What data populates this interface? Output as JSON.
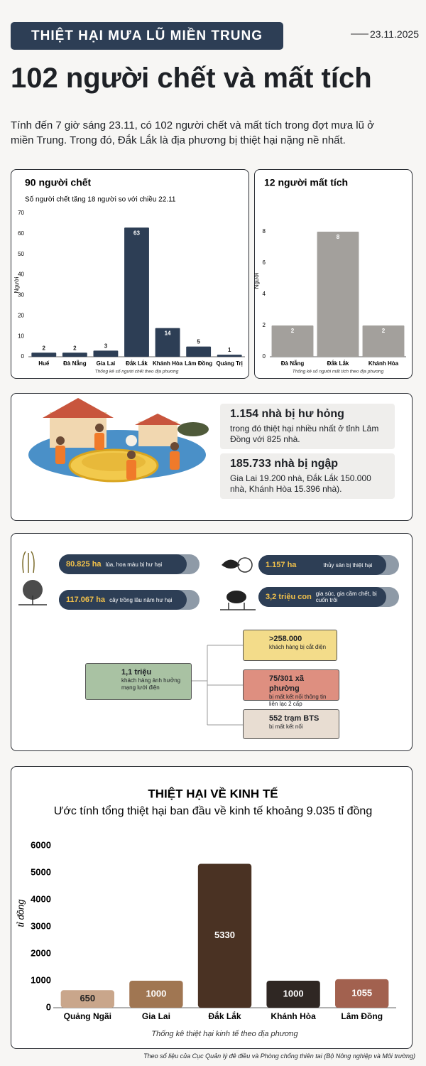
{
  "header": {
    "kicker": "THIỆT HẠI MƯA LŨ MIỀN TRUNG",
    "date": "23.11.2025",
    "headline": "102 người chết và mất tích",
    "intro": "Tính đến 7 giờ sáng 23.11, có 102 người chết và mất tích trong đợt mưa lũ ở miền Trung. Trong đó, Đắk Lắk là địa phương bị thiệt hại nặng nề nhất."
  },
  "chart_data": [
    {
      "type": "bar",
      "title": "90 người chết",
      "subtitle": "Số người chết tăng 18 người so với chiều 22.11",
      "y_label": "Người",
      "x_label": "Thống kê số người chết theo địa phương",
      "categories": [
        "Huế",
        "Đà Nẵng",
        "Gia Lai",
        "Đắk Lắk",
        "Khánh Hòa",
        "Lâm Đồng",
        "Quảng Trị"
      ],
      "values": [
        2,
        2,
        3,
        63,
        14,
        5,
        1
      ],
      "color": "#2d3e55",
      "ylim": [
        0,
        70
      ],
      "yticks": [
        0,
        10,
        20,
        30,
        40,
        50,
        60,
        70
      ],
      "grid": false
    },
    {
      "type": "bar",
      "title": "12 người mất tích",
      "y_label": "Người",
      "x_label": "Thống kê số người mất tích theo địa phương",
      "categories": [
        "Đà Nẵng",
        "Đắk Lắk",
        "Khánh Hòa"
      ],
      "values": [
        2,
        8,
        2
      ],
      "color": "#a3a09c",
      "ylim": [
        0,
        9
      ],
      "yticks": [
        0,
        2,
        4,
        6,
        8
      ],
      "grid": false
    },
    {
      "type": "bar",
      "title": "THIỆT HẠI VỀ KINH TẾ",
      "subtitle": "Ước tính tổng thiệt hại ban đầu về kinh tế khoảng 9.035 tỉ đồng",
      "y_label": "tỉ đồng",
      "x_label": "Thống kê thiệt hại kinh tế theo địa phương",
      "categories": [
        "Quảng Ngãi",
        "Gia Lai",
        "Đắk Lắk",
        "Khánh Hòa",
        "Lâm Đồng"
      ],
      "values": [
        650,
        1000,
        5330,
        1000,
        1055
      ],
      "colors": [
        "#c9a68b",
        "#a07652",
        "#4a3223",
        "#2f2723",
        "#a2614f"
      ],
      "ylim": [
        0,
        6000
      ],
      "yticks": [
        0,
        1000,
        2000,
        3000,
        4000,
        5000,
        6000
      ],
      "grid": false
    }
  ],
  "housing": {
    "damaged": {
      "title": "1.154 nhà bị hư hỏng",
      "text": "trong đó thiệt hại nhiều nhất ở tỉnh Lâm Đồng với 825 nhà."
    },
    "flooded": {
      "title": "185.733 nhà bị ngập",
      "text": "Gia Lai 19.200 nhà, Đắk Lắk 150.000 nhà, Khánh Hòa 15.396 nhà)."
    }
  },
  "agriculture": [
    {
      "value": "80.825 ha",
      "text": "lúa, hoa màu bị hư hại"
    },
    {
      "value": "117.067 ha",
      "text": "cây trồng lâu năm hư hại"
    },
    {
      "value": "1.157 ha",
      "text": "thủy sản bị thiệt hại"
    },
    {
      "value": "3,2 triệu con",
      "text": "gia súc, gia cầm chết, bị cuốn trôi"
    }
  ],
  "power": {
    "root": {
      "value": "1,1 triệu",
      "text": "khách hàng ảnh hưởng mạng lưới điện"
    },
    "branches": [
      {
        "value": ">258.000",
        "text": "khách hàng bị cắt điện"
      },
      {
        "value": "75/301 xã phường",
        "text": "bị mất kết nối thông tin liên lạc 2 cấp"
      },
      {
        "value": "552 trạm BTS",
        "text": "bị mất kết nối"
      }
    ]
  },
  "source": "Theo số liệu của Cục Quản lý đê điều và Phòng chống thiên tai (Bộ Nông nghiệp và Môi trường)"
}
